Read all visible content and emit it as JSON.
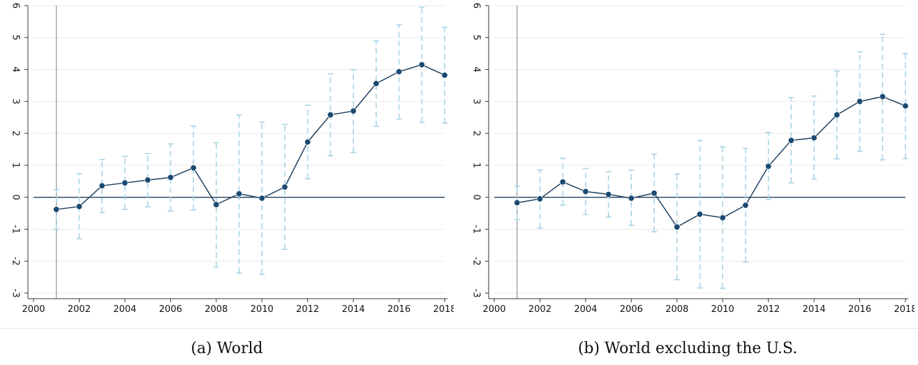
{
  "chart_data": [
    {
      "type": "line",
      "caption": "(a) World",
      "xlim": [
        2000,
        2018
      ],
      "ylim": [
        -3,
        6
      ],
      "x_ticks": [
        2000,
        2002,
        2004,
        2006,
        2008,
        2010,
        2012,
        2014,
        2016,
        2018
      ],
      "y_ticks": [
        -3,
        -2,
        -1,
        0,
        1,
        2,
        3,
        4,
        5,
        6
      ],
      "reference_x": 2001,
      "reference_y": 0,
      "grid": true,
      "series": [
        {
          "x": [
            2001,
            2002,
            2003,
            2004,
            2005,
            2006,
            2007,
            2008,
            2009,
            2010,
            2011,
            2012,
            2013,
            2014,
            2015,
            2016,
            2017,
            2018
          ],
          "values": [
            -0.38,
            -0.29,
            0.36,
            0.45,
            0.54,
            0.62,
            0.92,
            -0.23,
            0.11,
            -0.03,
            0.32,
            1.73,
            2.58,
            2.7,
            3.56,
            3.93,
            4.15,
            3.82
          ],
          "ci_low": [
            -1.0,
            -1.3,
            -0.48,
            -0.38,
            -0.3,
            -0.43,
            -0.4,
            -2.18,
            -2.37,
            -2.41,
            -1.63,
            0.58,
            1.3,
            1.4,
            2.22,
            2.45,
            2.34,
            2.32
          ],
          "ci_high": [
            0.24,
            0.74,
            1.18,
            1.28,
            1.37,
            1.67,
            2.23,
            1.71,
            2.58,
            2.35,
            2.28,
            2.88,
            3.86,
            3.99,
            4.9,
            5.4,
            5.95,
            5.32
          ]
        }
      ]
    },
    {
      "type": "line",
      "caption": "(b) World excluding the U.S.",
      "xlim": [
        2000,
        2018
      ],
      "ylim": [
        -3,
        6
      ],
      "x_ticks": [
        2000,
        2002,
        2004,
        2006,
        2008,
        2010,
        2012,
        2014,
        2016,
        2018
      ],
      "y_ticks": [
        -3,
        -2,
        -1,
        0,
        1,
        2,
        3,
        4,
        5,
        6
      ],
      "reference_x": 2001,
      "reference_y": 0,
      "grid": true,
      "series": [
        {
          "x": [
            2001,
            2002,
            2003,
            2004,
            2005,
            2006,
            2007,
            2008,
            2009,
            2010,
            2011,
            2012,
            2013,
            2014,
            2015,
            2016,
            2017,
            2018
          ],
          "values": [
            -0.17,
            -0.05,
            0.48,
            0.18,
            0.09,
            -0.03,
            0.13,
            -0.93,
            -0.53,
            -0.64,
            -0.25,
            0.97,
            1.78,
            1.86,
            2.58,
            3.0,
            3.15,
            2.86
          ],
          "ci_low": [
            -0.7,
            -0.96,
            -0.25,
            -0.54,
            -0.62,
            -0.88,
            -1.08,
            -2.58,
            -2.84,
            -2.85,
            -2.03,
            -0.07,
            0.45,
            0.57,
            1.2,
            1.44,
            1.17,
            1.21
          ],
          "ci_high": [
            0.35,
            0.85,
            1.22,
            0.9,
            0.8,
            0.85,
            1.35,
            0.73,
            1.78,
            1.58,
            1.53,
            2.03,
            3.12,
            3.17,
            3.95,
            4.55,
            5.1,
            4.5
          ]
        }
      ]
    }
  ],
  "colors": {
    "line": "#1f3f5f",
    "marker": "#1a4a72",
    "ci": "#a9d3e6",
    "zero_line": "#1f3f5f",
    "reference_line": "#7a7a7a",
    "grid": "#e8e8e8",
    "axis": "#333333"
  }
}
